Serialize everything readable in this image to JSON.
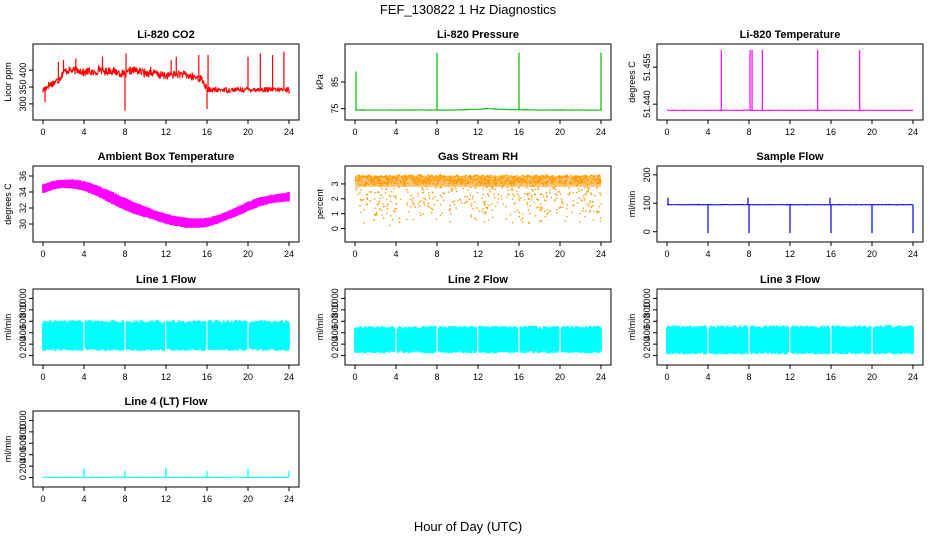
{
  "figure": {
    "title": "FEF_130822  1 Hz Diagnostics",
    "xlabel": "Hour of Day (UTC)"
  },
  "chart_data": [
    {
      "type": "line",
      "title": "Li-820 CO2",
      "ylabel": "Licor ppm",
      "color": "#ff0000",
      "xlim": [
        0,
        24
      ],
      "xticks": [
        0,
        4,
        8,
        12,
        16,
        20,
        24
      ],
      "ylim": [
        270,
        460
      ],
      "yticks": [
        300,
        350,
        400
      ],
      "series": [
        {
          "x": [
            0,
            0.5,
            1,
            1.5,
            2,
            2.5,
            3,
            3.5,
            4,
            4.5,
            5,
            5.5,
            6,
            6.5,
            7,
            7.5,
            8,
            8.5,
            9,
            9.5,
            10,
            10.5,
            11,
            11.5,
            12,
            12.5,
            13,
            13.5,
            14,
            14.5,
            15,
            15.5,
            16,
            16.5,
            17,
            17.5,
            18,
            18.5,
            19,
            19.5,
            20,
            20.5,
            21,
            21.5,
            22,
            22.5,
            23,
            23.5,
            24
          ],
          "y": [
            340,
            355,
            362,
            370,
            395,
            400,
            398,
            402,
            392,
            398,
            390,
            405,
            395,
            400,
            396,
            392,
            385,
            398,
            400,
            396,
            392,
            392,
            390,
            385,
            384,
            386,
            388,
            388,
            385,
            380,
            378,
            374,
            342,
            342,
            341,
            342,
            341,
            342,
            342,
            342,
            343,
            343,
            342,
            342,
            342,
            341,
            342,
            342,
            343
          ]
        }
      ],
      "spikes": [
        [
          0.2,
          305
        ],
        [
          1.5,
          425
        ],
        [
          2.0,
          430
        ],
        [
          3.2,
          435
        ],
        [
          5.8,
          440
        ],
        [
          8.0,
          280
        ],
        [
          8.1,
          450
        ],
        [
          10.5,
          410
        ],
        [
          12.5,
          430
        ],
        [
          13.0,
          440
        ],
        [
          15.2,
          445
        ],
        [
          16.0,
          285
        ],
        [
          16.1,
          445
        ],
        [
          20.0,
          440
        ],
        [
          21.2,
          450
        ],
        [
          22.4,
          445
        ],
        [
          23.5,
          455
        ],
        [
          24.0,
          330
        ]
      ]
    },
    {
      "type": "line",
      "title": "Li-820 Pressure",
      "ylabel": "kPa",
      "color": "#00bb00",
      "xlim": [
        0,
        24
      ],
      "xticks": [
        0,
        4,
        8,
        12,
        16,
        20,
        24
      ],
      "ylim": [
        73,
        97
      ],
      "yticks": [
        75,
        85
      ],
      "series": [
        {
          "x": [
            0,
            2,
            4,
            6,
            8,
            10,
            12,
            13,
            14,
            16,
            18,
            20,
            22,
            24
          ],
          "y": [
            74.5,
            74.5,
            74.5,
            74.5,
            74.5,
            74.5,
            74.8,
            75.0,
            74.8,
            74.6,
            74.5,
            74.5,
            74.5,
            74.4
          ]
        }
      ],
      "spikes": [
        [
          0.1,
          89
        ],
        [
          8.0,
          96
        ],
        [
          16.0,
          96
        ],
        [
          24.0,
          96
        ]
      ]
    },
    {
      "type": "line",
      "title": "Li-820 Temperature",
      "ylabel": "degrees C",
      "color": "#ff00ff",
      "xlim": [
        0,
        24
      ],
      "xticks": [
        0,
        4,
        8,
        12,
        16,
        20,
        24
      ],
      "ylim": [
        51.436,
        51.462
      ],
      "yticks": [
        51.44,
        51.455
      ],
      "yticklabels": [
        "51.440",
        "51.455"
      ],
      "series": [
        {
          "x": [
            0,
            24
          ],
          "y": [
            51.4375,
            51.4375
          ]
        }
      ],
      "spikes": [
        [
          5.3,
          51.462
        ],
        [
          8.1,
          51.462
        ],
        [
          8.3,
          51.462
        ],
        [
          9.3,
          51.462
        ],
        [
          14.7,
          51.462
        ],
        [
          18.8,
          51.462
        ]
      ]
    },
    {
      "type": "area",
      "title": "Ambient Box Temperature",
      "ylabel": "degrees C",
      "color": "#ff00ff",
      "xlim": [
        0,
        24
      ],
      "xticks": [
        0,
        4,
        8,
        12,
        16,
        20,
        24
      ],
      "ylim": [
        28.5,
        36.5
      ],
      "yticks": [
        30,
        32,
        34,
        36
      ],
      "series": [
        {
          "x": [
            0,
            1,
            2,
            3,
            4,
            5,
            6,
            7,
            8,
            9,
            10,
            11,
            12,
            13,
            14,
            15,
            16,
            17,
            18,
            19,
            20,
            21,
            22,
            23,
            24
          ],
          "low": [
            33.8,
            34.3,
            34.5,
            34.4,
            34.1,
            33.6,
            33.0,
            32.3,
            31.7,
            31.2,
            30.8,
            30.4,
            30.0,
            29.7,
            29.5,
            29.5,
            29.6,
            30.0,
            30.5,
            31.0,
            31.6,
            32.1,
            32.5,
            32.7,
            32.8
          ],
          "high": [
            35.0,
            35.4,
            35.6,
            35.6,
            35.4,
            35.0,
            34.5,
            33.9,
            33.3,
            32.7,
            32.2,
            31.7,
            31.3,
            31.0,
            30.8,
            30.7,
            30.8,
            31.1,
            31.6,
            32.2,
            32.8,
            33.3,
            33.6,
            33.8,
            34.0
          ]
        }
      ]
    },
    {
      "type": "scatter",
      "title": "Gas Stream RH",
      "ylabel": "percent",
      "color": "#ff9900",
      "xlim": [
        0,
        24
      ],
      "xticks": [
        0,
        4,
        8,
        12,
        16,
        20,
        24
      ],
      "ylim": [
        -0.5,
        3.8
      ],
      "yticks": [
        0,
        1,
        2,
        3
      ],
      "series": [
        {
          "x": [
            0,
            24
          ],
          "low": [
            0.2,
            0.2
          ],
          "high": [
            3.6,
            3.6
          ]
        }
      ]
    },
    {
      "type": "line",
      "title": "Sample Flow",
      "ylabel": "ml/min",
      "color": "#0000ff",
      "xlim": [
        0,
        24
      ],
      "xticks": [
        0,
        4,
        8,
        12,
        16,
        20,
        24
      ],
      "ylim": [
        -15,
        210
      ],
      "yticks": [
        0,
        100,
        200
      ],
      "series": [
        {
          "x": [
            0,
            24
          ],
          "y": [
            95,
            95
          ]
        }
      ],
      "spikes": [
        [
          0.1,
          120
        ],
        [
          4.0,
          -5
        ],
        [
          7.9,
          120
        ],
        [
          8.0,
          -5
        ],
        [
          12.0,
          -5
        ],
        [
          15.9,
          120
        ],
        [
          16.0,
          -5
        ],
        [
          20.0,
          -5
        ],
        [
          24.0,
          -5
        ]
      ]
    },
    {
      "type": "area",
      "title": "Line 1 Flow",
      "ylabel": "ml/min",
      "color": "#00ffff",
      "xlim": [
        0,
        24
      ],
      "xticks": [
        0,
        4,
        8,
        12,
        16,
        20,
        24
      ],
      "ylim": [
        -60,
        1060
      ],
      "yticks": [
        0,
        200,
        400,
        600,
        800,
        1000
      ],
      "series": [
        {
          "x": [
            0,
            24
          ],
          "low": [
            80,
            80
          ],
          "high": [
            620,
            620
          ]
        }
      ],
      "gaps": [
        4,
        8,
        12,
        16,
        20
      ]
    },
    {
      "type": "area",
      "title": "Line 2 Flow",
      "ylabel": "ml/min",
      "color": "#00ffff",
      "xlim": [
        0,
        24
      ],
      "xticks": [
        0,
        4,
        8,
        12,
        16,
        20,
        24
      ],
      "ylim": [
        -60,
        1060
      ],
      "yticks": [
        0,
        200,
        400,
        600,
        800,
        1000
      ],
      "series": [
        {
          "x": [
            0,
            24
          ],
          "low": [
            40,
            40
          ],
          "high": [
            520,
            520
          ]
        }
      ],
      "gaps": [
        4,
        8,
        12,
        16,
        20
      ]
    },
    {
      "type": "area",
      "title": "Line 3 Flow",
      "ylabel": "ml/min",
      "color": "#00ffff",
      "xlim": [
        0,
        24
      ],
      "xticks": [
        0,
        4,
        8,
        12,
        16,
        20,
        24
      ],
      "ylim": [
        -60,
        1060
      ],
      "yticks": [
        0,
        200,
        400,
        600,
        800,
        1000
      ],
      "series": [
        {
          "x": [
            0,
            24
          ],
          "low": [
            20,
            20
          ],
          "high": [
            530,
            530
          ]
        }
      ],
      "gaps": [
        4,
        8,
        12,
        16,
        20
      ]
    },
    {
      "type": "line",
      "title": "Line 4 (LT) Flow",
      "ylabel": "ml/min",
      "color": "#00ffff",
      "xlim": [
        0,
        24
      ],
      "xticks": [
        0,
        4,
        8,
        12,
        16,
        20,
        24
      ],
      "ylim": [
        -60,
        1060
      ],
      "yticks": [
        0,
        200,
        400,
        600,
        800,
        1000
      ],
      "series": [
        {
          "x": [
            0,
            24
          ],
          "y": [
            5,
            5
          ]
        }
      ],
      "spikes": [
        [
          4.0,
          160
        ],
        [
          8.0,
          120
        ],
        [
          12.0,
          170
        ],
        [
          16.0,
          110
        ],
        [
          20.0,
          170
        ],
        [
          24.0,
          120
        ]
      ]
    }
  ]
}
